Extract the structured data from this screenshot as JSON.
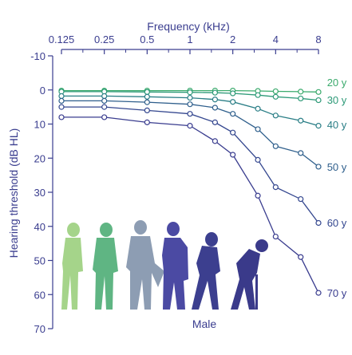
{
  "chart_data": {
    "type": "line",
    "title": "",
    "xlabel": "Frequency (kHz)",
    "ylabel": "Hearing threshold (dB HL)",
    "annotation": "Male",
    "x_scale": "log",
    "y_inverted": true,
    "xlim": [
      0.125,
      8
    ],
    "ylim": [
      -10,
      70
    ],
    "x_ticks": [
      {
        "value": 0.125,
        "label": "0.125"
      },
      {
        "value": 0.25,
        "label": "0.25"
      },
      {
        "value": 0.5,
        "label": "0.5"
      },
      {
        "value": 1,
        "label": "1"
      },
      {
        "value": 2,
        "label": "2"
      },
      {
        "value": 4,
        "label": "4"
      },
      {
        "value": 8,
        "label": "8"
      }
    ],
    "y_ticks": [
      {
        "value": -10,
        "label": "-10"
      },
      {
        "value": 0,
        "label": "0"
      },
      {
        "value": 10,
        "label": "10"
      },
      {
        "value": 20,
        "label": "20"
      },
      {
        "value": 30,
        "label": "30"
      },
      {
        "value": 40,
        "label": "40"
      },
      {
        "value": 50,
        "label": "50"
      },
      {
        "value": 60,
        "label": "60"
      },
      {
        "value": 70,
        "label": "70"
      }
    ],
    "x": [
      0.125,
      0.25,
      0.5,
      1,
      1.5,
      2,
      3,
      4,
      6,
      8
    ],
    "series": [
      {
        "name": "20 y",
        "color": "#3aaa6c",
        "values": [
          0.2,
          0.2,
          0.2,
          0.2,
          0.2,
          0.2,
          0.3,
          0.4,
          0.5,
          0.6
        ]
      },
      {
        "name": "30 y",
        "color": "#2e9a78",
        "values": [
          0.5,
          0.5,
          0.6,
          0.7,
          0.8,
          1.0,
          1.5,
          2.0,
          2.5,
          3.0
        ]
      },
      {
        "name": "40 y",
        "color": "#2a7e86",
        "values": [
          1.8,
          1.8,
          2.0,
          2.3,
          2.8,
          3.5,
          5.5,
          7.5,
          9.0,
          10.5
        ]
      },
      {
        "name": "50 y",
        "color": "#2f5f8c",
        "values": [
          3.2,
          3.2,
          3.6,
          4.2,
          5.2,
          7.0,
          11.5,
          16.5,
          18.5,
          22.5
        ]
      },
      {
        "name": "60 y",
        "color": "#34478f",
        "values": [
          5.0,
          5.0,
          6.0,
          7.0,
          9.5,
          12.5,
          20.5,
          28.5,
          32.0,
          39.0
        ]
      },
      {
        "name": "70 y",
        "color": "#3a3d8f",
        "values": [
          8.0,
          8.0,
          9.5,
          10.5,
          15.0,
          19.0,
          31.0,
          43.0,
          49.0,
          59.5
        ]
      }
    ],
    "grid": false,
    "legend": "right"
  },
  "colors": {
    "axis": "#3a3d8f",
    "figures": [
      "#a5d48a",
      "#5fb583",
      "#8d9db3",
      "#4b4aa3",
      "#3c3f8f",
      "#3a3a8a"
    ]
  }
}
